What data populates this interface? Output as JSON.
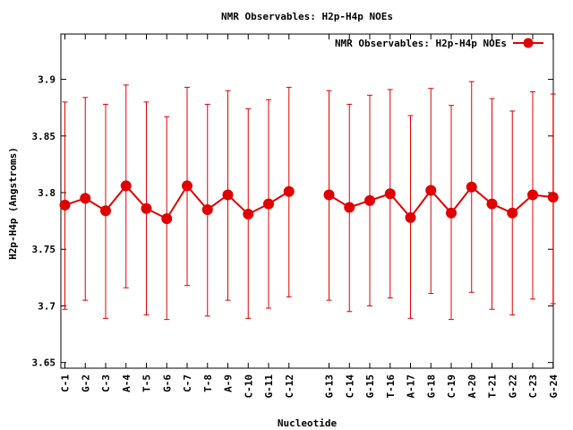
{
  "chart_data": {
    "type": "line",
    "title": "NMR Observables: H2p-H4p NOEs",
    "xlabel": "Nucleotide",
    "ylabel": "H2p-H4p (Angstroms)",
    "ylim": [
      3.645,
      3.94
    ],
    "yticks": [
      3.65,
      3.7,
      3.75,
      3.8,
      3.85,
      3.9
    ],
    "ytick_labels": [
      "3.65",
      "3.7",
      "3.75",
      "3.8",
      "3.85",
      "3.9"
    ],
    "grid": false,
    "legend_placement": "top-right",
    "color": "#e00000",
    "series": [
      {
        "name": "NMR Observables: H2p-H4p NOEs",
        "segments": [
          {
            "categories": [
              "C-1",
              "G-2",
              "C-3",
              "A-4",
              "T-5",
              "G-6",
              "C-7",
              "T-8",
              "A-9",
              "C-10",
              "G-11",
              "C-12"
            ],
            "values": [
              3.789,
              3.795,
              3.784,
              3.806,
              3.786,
              3.777,
              3.806,
              3.785,
              3.798,
              3.781,
              3.79,
              3.801
            ],
            "err_high": [
              3.88,
              3.884,
              3.878,
              3.895,
              3.88,
              3.867,
              3.893,
              3.878,
              3.89,
              3.874,
              3.882,
              3.893
            ],
            "err_low": [
              3.697,
              3.705,
              3.689,
              3.716,
              3.692,
              3.688,
              3.718,
              3.691,
              3.705,
              3.689,
              3.698,
              3.708
            ]
          },
          {
            "categories": [
              "G-13",
              "C-14",
              "G-15",
              "T-16",
              "A-17",
              "G-18",
              "C-19",
              "A-20",
              "T-21",
              "G-22",
              "C-23",
              "G-24"
            ],
            "values": [
              3.798,
              3.787,
              3.793,
              3.799,
              3.778,
              3.802,
              3.782,
              3.805,
              3.79,
              3.782,
              3.798,
              3.796
            ],
            "err_high": [
              3.89,
              3.878,
              3.886,
              3.891,
              3.868,
              3.892,
              3.877,
              3.898,
              3.883,
              3.872,
              3.889,
              3.887
            ],
            "err_low": [
              3.705,
              3.695,
              3.7,
              3.707,
              3.689,
              3.711,
              3.688,
              3.712,
              3.697,
              3.692,
              3.706,
              3.702
            ]
          }
        ]
      }
    ]
  }
}
